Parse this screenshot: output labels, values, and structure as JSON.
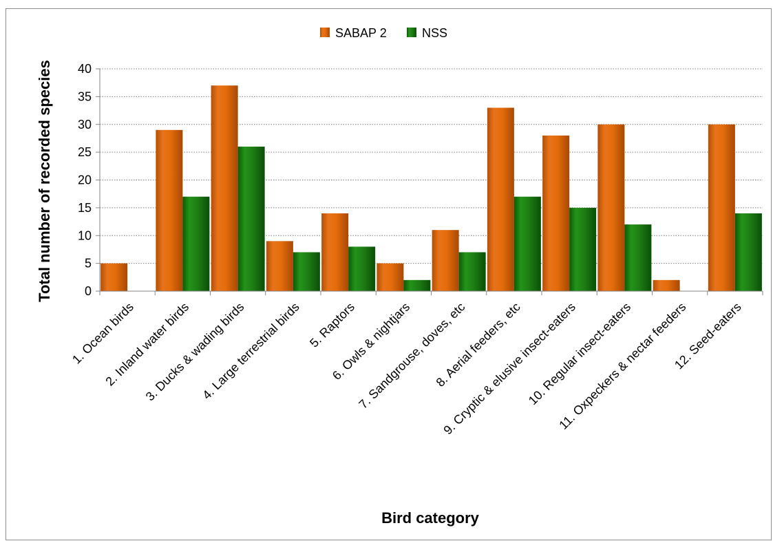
{
  "chart_data": {
    "type": "bar",
    "title": "",
    "xlabel": "Bird category",
    "ylabel": "Total number of recorded species",
    "ylim": [
      0,
      40
    ],
    "yticks": [
      0,
      5,
      10,
      15,
      20,
      25,
      30,
      35,
      40
    ],
    "grid": true,
    "legend_position": "top",
    "categories": [
      "1. Ocean birds",
      "2. Inland water birds",
      "3. Ducks & wading birds",
      "4. Large terrestrial birds",
      "5. Raptors",
      "6. Owls & nightjars",
      "7. Sandgrouse, doves, etc",
      "8. Aerial feeders, etc",
      "9. Cryptic & elusive insect-eaters",
      "10. Regular insect-eaters",
      "11. Oxpeckers & nectar feeders",
      "12. Seed-eaters"
    ],
    "series": [
      {
        "name": "SABAP 2",
        "color": "#e46c0a",
        "values": [
          5,
          29,
          37,
          9,
          14,
          5,
          11,
          33,
          28,
          30,
          2,
          30
        ]
      },
      {
        "name": "NSS",
        "color": "#1e7d14",
        "values": [
          0,
          17,
          26,
          7,
          8,
          2,
          7,
          17,
          15,
          12,
          0,
          14
        ]
      }
    ]
  }
}
